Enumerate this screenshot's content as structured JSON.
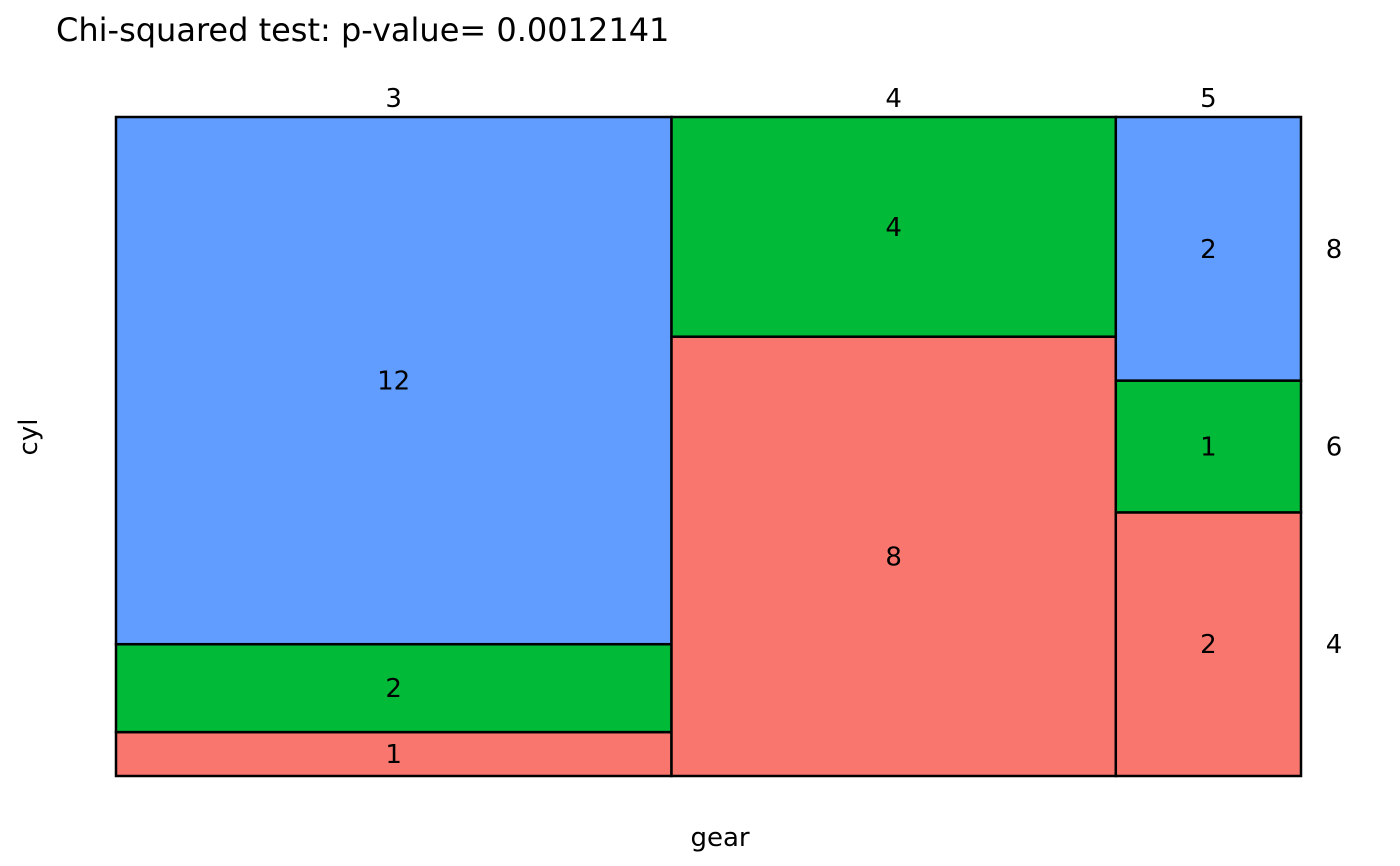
{
  "chart_data": {
    "type": "mosaic",
    "title": "Chi-squared test: p-value= 0.0012141",
    "xlabel": "gear",
    "ylabel": "cyl",
    "x_categories": [
      "3",
      "4",
      "5"
    ],
    "y_categories": [
      "4",
      "6",
      "8"
    ],
    "counts": {
      "3": {
        "4": 1,
        "6": 2,
        "8": 12
      },
      "4": {
        "4": 8,
        "6": 4,
        "8": 0
      },
      "5": {
        "4": 2,
        "6": 1,
        "8": 2
      }
    },
    "colors": {
      "4": "#F8766D",
      "6": "#00BA38",
      "8": "#619CFF"
    },
    "grid": false,
    "legend": "none"
  }
}
